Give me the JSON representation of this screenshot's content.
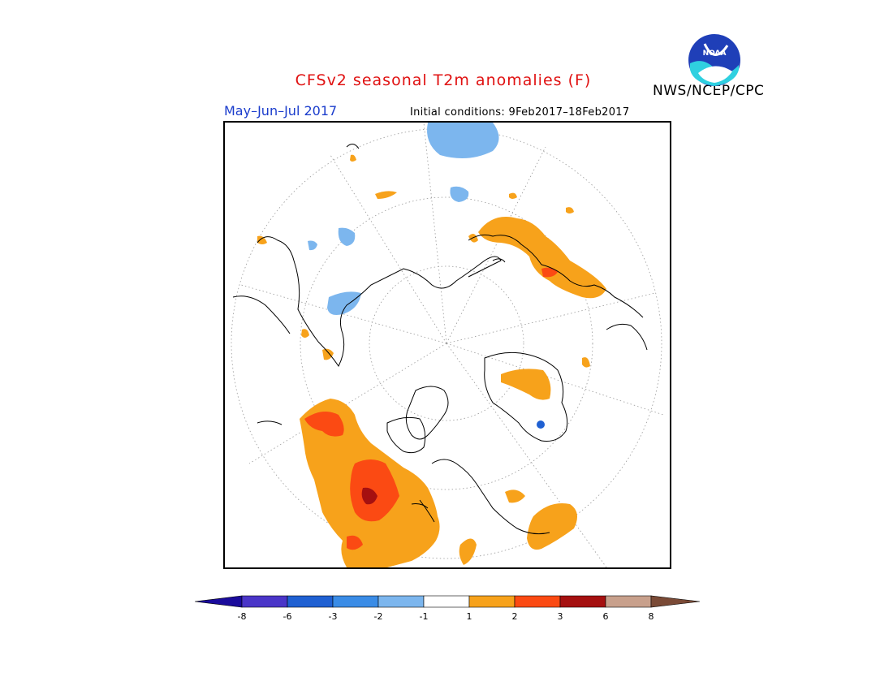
{
  "header": {
    "title": "CFSv2 seasonal T2m anomalies (F)",
    "period": "May–Jun–Jul 2017",
    "initial_conditions": "Initial conditions: 9Feb2017–18Feb2017",
    "agency": "NWS/NCEP/CPC",
    "logo_text": "NOAA"
  },
  "legend": {
    "ticks": [
      "-8",
      "-6",
      "-3",
      "-2",
      "-1",
      "1",
      "2",
      "3",
      "6",
      "8"
    ],
    "colors": [
      "#1a0b9c",
      "#4a35c8",
      "#1f60d2",
      "#3a8ce6",
      "#7cb6ee",
      "#ffffff",
      "#f7a21b",
      "#fb4a13",
      "#a51010",
      "#c8a08c",
      "#7a4a36"
    ]
  },
  "map": {
    "projection": "north-polar-stereographic",
    "colors": {
      "cold1": "#7cb6ee",
      "cold3": "#1f60d2",
      "warm1": "#f7a21b",
      "warm2": "#fb4a13",
      "warm3": "#a51010",
      "coast": "#000000",
      "grid": "#999999"
    }
  }
}
